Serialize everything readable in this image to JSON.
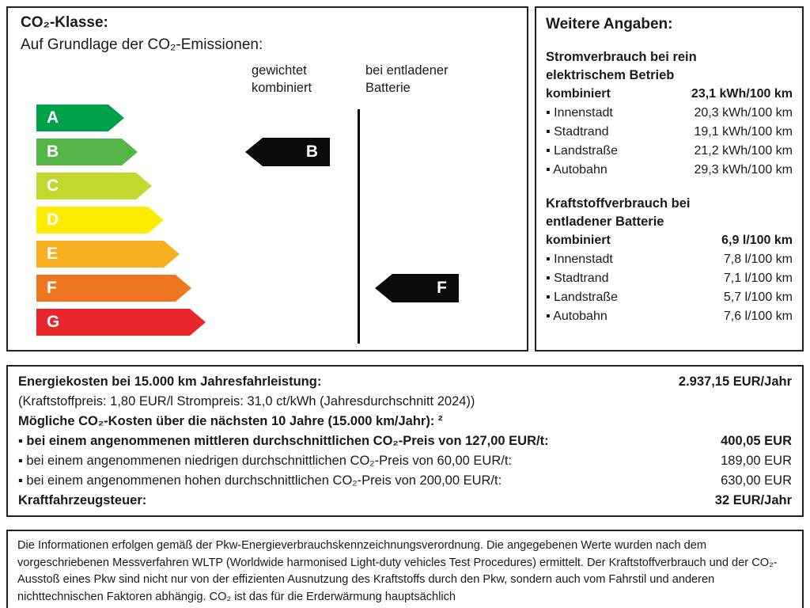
{
  "co2_panel": {
    "title": "CO₂-Klasse:",
    "subtitle": "Auf Grundlage der CO₂-Emissionen:",
    "weighted_header_line1": "gewichtet",
    "weighted_header_line2": "kombiniert",
    "depleted_header_line1": "bei entladener",
    "depleted_header_line2": "Batterie",
    "classes": [
      {
        "label": "A",
        "color": "#00a14b"
      },
      {
        "label": "B",
        "color": "#55b648"
      },
      {
        "label": "C",
        "color": "#c3d82e"
      },
      {
        "label": "D",
        "color": "#ffec00"
      },
      {
        "label": "E",
        "color": "#f7af20"
      },
      {
        "label": "F",
        "color": "#ef7722"
      },
      {
        "label": "G",
        "color": "#e8262d"
      }
    ],
    "weighted_value": "B",
    "depleted_value": "F",
    "marker_color": "#0a0a0a"
  },
  "details_panel": {
    "title": "Weitere Angaben:",
    "sections": [
      {
        "heading": "Stromverbrauch bei rein elektrischem Betrieb",
        "rows": [
          {
            "label": "kombiniert",
            "value": "23,1 kWh/100 km"
          },
          {
            "label": "▪ Innenstadt",
            "value": "20,3 kWh/100 km"
          },
          {
            "label": "▪ Stadtrand",
            "value": "19,1 kWh/100 km"
          },
          {
            "label": "▪ Landstraße",
            "value": "21,2 kWh/100 km"
          },
          {
            "label": "▪ Autobahn",
            "value": "29,3 kWh/100 km"
          }
        ]
      },
      {
        "heading": "Kraftstoffverbrauch bei entladener Batterie",
        "rows": [
          {
            "label": "kombiniert",
            "value": "6,9 l/100 km"
          },
          {
            "label": "▪ Innenstadt",
            "value": "7,8 l/100 km"
          },
          {
            "label": "▪ Stadtrand",
            "value": "7,1 l/100 km"
          },
          {
            "label": "▪ Landstraße",
            "value": "5,7 l/100 km"
          },
          {
            "label": "▪ Autobahn",
            "value": "7,6 l/100 km"
          }
        ]
      }
    ]
  },
  "costs_panel": {
    "rows": [
      {
        "label": "Energiekosten bei 15.000 km Jahresfahrleistung:",
        "value": "2.937,15 EUR/Jahr"
      },
      {
        "label": "(Kraftstoffpreis:  1,80 EUR/l  Strompreis:  31,0 ct/kWh (Jahresdurchschnitt 2024))",
        "value": ""
      },
      {
        "label": "Mögliche CO₂-Kosten über die nächsten 10 Jahre (15.000 km/Jahr): ²",
        "value": ""
      },
      {
        "label": "▪ bei einem angenommenen mittleren durchschnittlichen CO₂-Preis von 127,00 EUR/t:",
        "value": "400,05 EUR"
      },
      {
        "label": "▪ bei einem angenommenen niedrigen durchschnittlichen CO₂-Preis von 60,00 EUR/t:",
        "value": "189,00 EUR"
      },
      {
        "label": "▪ bei einem angenommenen hohen durchschnittlichen CO₂-Preis von 200,00 EUR/t:",
        "value": "630,00 EUR"
      },
      {
        "label": "Kraftfahrzeugsteuer:",
        "value": "32 EUR/Jahr"
      }
    ]
  },
  "legal_panel": {
    "text": "Die Informationen erfolgen gemäß der Pkw-Energieverbrauchskennzeichnungsverordnung. Die angegebenen Werte wurden nach dem vorgeschriebenen Messverfahren WLTP (Worldwide harmonised Light-duty vehicles Test Procedures) ermittelt. Der Kraftstoffverbrauch und der CO₂-Ausstoß eines Pkw sind nicht nur von der effizienten Ausnutzung des Kraftstoffs durch den Pkw, sondern auch vom Fahrstil und anderen nichttechnischen Faktoren abhängig. CO₂ ist das für die Erderwärmung hauptsächlich"
  }
}
